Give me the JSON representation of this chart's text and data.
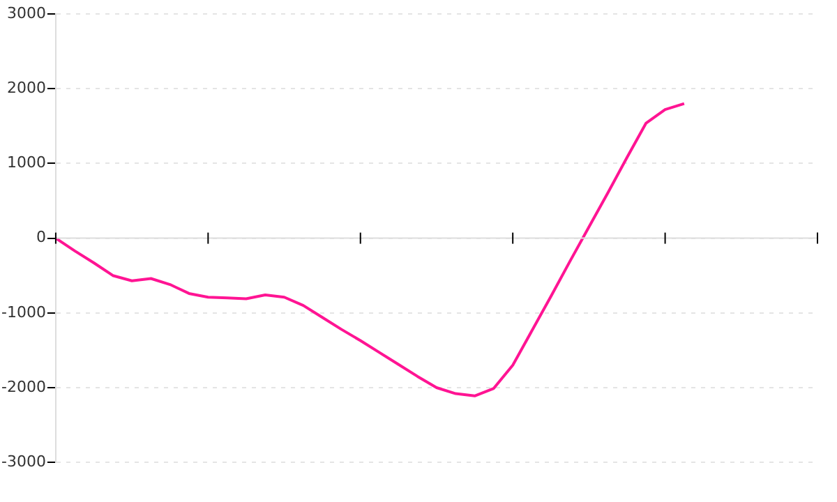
{
  "chart_data": {
    "type": "line",
    "categories": [
      null,
      null,
      null,
      null,
      null,
      null,
      null,
      null,
      null,
      null,
      null,
      null,
      null,
      null,
      null,
      null,
      null,
      null,
      null,
      null,
      null,
      null,
      null,
      null,
      null,
      null,
      null,
      null,
      null,
      null,
      null,
      null,
      null,
      null,
      null,
      null,
      null,
      null,
      null,
      null,
      null
    ],
    "series": [
      {
        "color": "#ff1493",
        "values": [
          0,
          -170,
          -330,
          -500,
          -570,
          -540,
          -620,
          -740,
          -790,
          -800,
          -810,
          -760,
          -790,
          -900,
          -1060,
          -1220,
          -1370,
          -1530,
          -1690,
          -1850,
          -2000,
          -2080,
          -2110,
          -2010,
          -1700,
          -1240,
          -780,
          -310,
          150,
          610,
          1080,
          1540,
          1720,
          1800,
          null,
          null,
          null,
          null,
          null,
          null,
          null
        ]
      }
    ],
    "ylim": [
      -3000,
      3000
    ],
    "yticks": [
      -3000,
      -2000,
      -1000,
      0,
      1000,
      2000,
      3000
    ],
    "grid": "y",
    "legend": false,
    "marker": "none",
    "line_style": "solid"
  }
}
